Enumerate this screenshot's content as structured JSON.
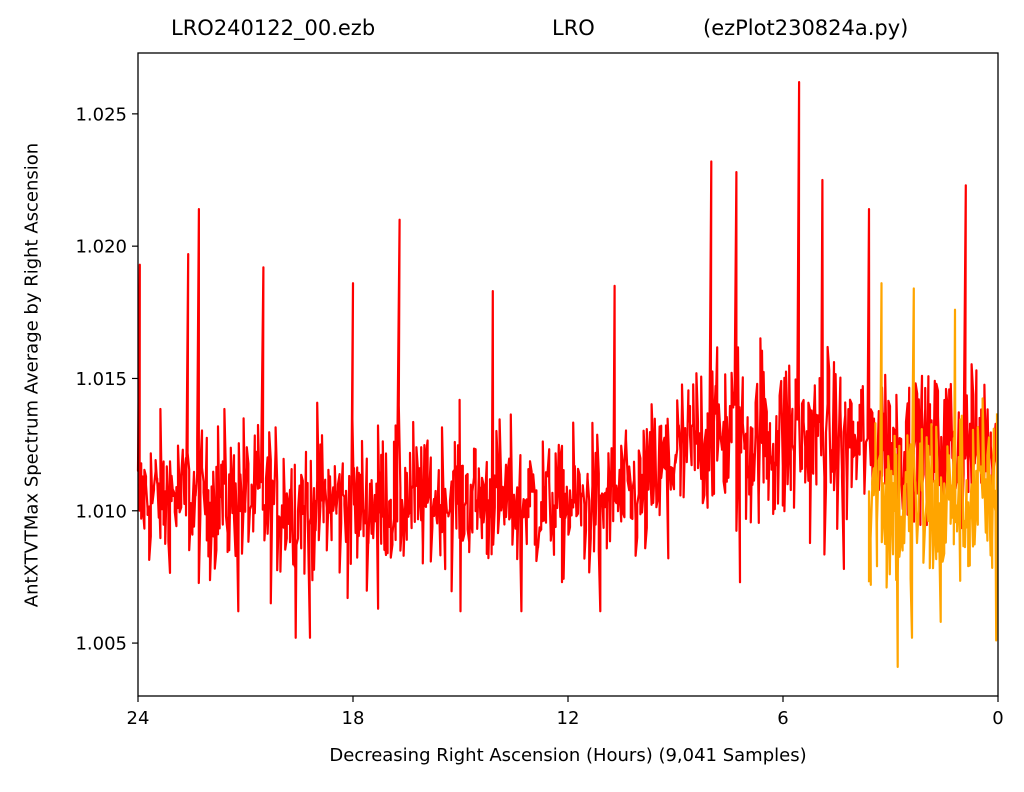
{
  "chart_data": {
    "type": "line",
    "title": {
      "left": "LRO240122_00.ezb",
      "center": "LRO",
      "right": "(ezPlot230824a.py)"
    },
    "xlabel": "Decreasing Right Ascension (Hours) (9,041 Samples)",
    "ylabel": "AntXTVTMax Spectrum Average by Right Ascension",
    "x_reversed": true,
    "xlim": [
      24,
      0
    ],
    "ylim": [
      1.003,
      1.0273
    ],
    "xticks": [
      24,
      18,
      12,
      6,
      0
    ],
    "xtick_labels": [
      "24",
      "18",
      "12",
      "6",
      "0"
    ],
    "yticks": [
      1.005,
      1.01,
      1.015,
      1.02,
      1.025
    ],
    "ytick_labels": [
      "1.005",
      "1.010",
      "1.015",
      "1.020",
      "1.025"
    ],
    "grid": false,
    "legend": "none",
    "series": [
      {
        "color": "#ff0000",
        "x_range": [
          24,
          0
        ],
        "trend": {
          "x": [
            24,
            21,
            18,
            15,
            12,
            10,
            9.2,
            8,
            6,
            4,
            2,
            0
          ],
          "center": [
            1.0105,
            1.0105,
            1.0102,
            1.0105,
            1.0102,
            1.0105,
            1.0118,
            1.0128,
            1.0128,
            1.0125,
            1.0125,
            1.0125
          ],
          "spread": [
            0.0033,
            0.0036,
            0.0035,
            0.0033,
            0.0033,
            0.0033,
            0.0037,
            0.0042,
            0.0045,
            0.004,
            0.0038,
            0.004
          ]
        },
        "peaks": [
          {
            "x": 23.95,
            "y": 1.0193
          },
          {
            "x": 22.3,
            "y": 1.0214
          },
          {
            "x": 22.6,
            "y": 1.0197
          },
          {
            "x": 20.5,
            "y": 1.0192
          },
          {
            "x": 16.7,
            "y": 1.021
          },
          {
            "x": 18.0,
            "y": 1.0186
          },
          {
            "x": 14.1,
            "y": 1.0183
          },
          {
            "x": 10.7,
            "y": 1.0185
          },
          {
            "x": 8.0,
            "y": 1.0232
          },
          {
            "x": 7.3,
            "y": 1.0228
          },
          {
            "x": 5.55,
            "y": 1.0262
          },
          {
            "x": 4.9,
            "y": 1.0225
          },
          {
            "x": 3.6,
            "y": 1.0214
          },
          {
            "x": 0.9,
            "y": 1.0223
          }
        ],
        "troughs": [
          {
            "x": 21.2,
            "y": 1.0062
          },
          {
            "x": 19.6,
            "y": 1.0052
          },
          {
            "x": 19.2,
            "y": 1.0052
          },
          {
            "x": 17.3,
            "y": 1.0063
          },
          {
            "x": 15.0,
            "y": 1.0062
          },
          {
            "x": 13.3,
            "y": 1.0062
          },
          {
            "x": 11.1,
            "y": 1.0062
          },
          {
            "x": 9.2,
            "y": 1.0082
          },
          {
            "x": 7.2,
            "y": 1.0073
          },
          {
            "x": 4.3,
            "y": 1.0078
          }
        ]
      },
      {
        "color": "#ffa500",
        "x_range": [
          3.6,
          0
        ],
        "trend": {
          "x": [
            3.6,
            2.7,
            1.5,
            0
          ],
          "center": [
            1.0112,
            1.01,
            1.0103,
            1.0103
          ],
          "spread": [
            0.005,
            0.0052,
            0.0046,
            0.0047
          ]
        },
        "peaks": [
          {
            "x": 3.25,
            "y": 1.0186
          },
          {
            "x": 2.35,
            "y": 1.0184
          },
          {
            "x": 1.2,
            "y": 1.0176
          }
        ],
        "troughs": [
          {
            "x": 3.55,
            "y": 1.0072
          },
          {
            "x": 2.8,
            "y": 1.0041
          },
          {
            "x": 2.4,
            "y": 1.0052
          },
          {
            "x": 1.6,
            "y": 1.0058
          },
          {
            "x": 0.05,
            "y": 1.0051
          }
        ]
      }
    ]
  }
}
